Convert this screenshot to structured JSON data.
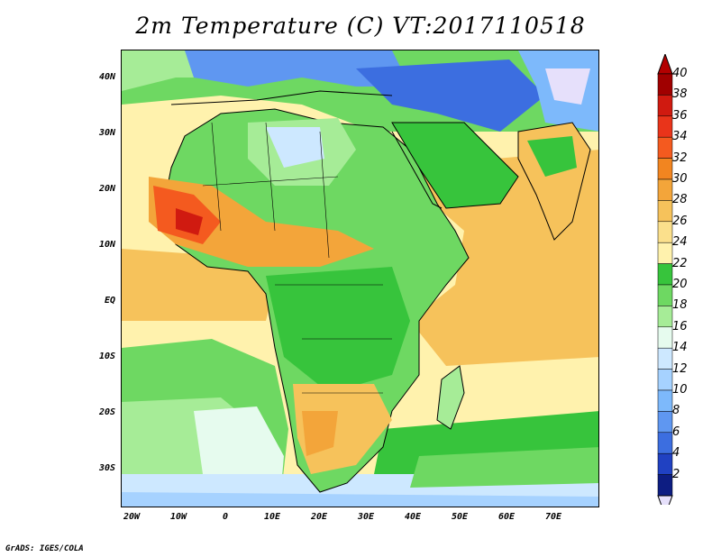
{
  "title": "2m Temperature (C) VT:2017110518",
  "credit": "GrADS: IGES/COLA",
  "map": {
    "lat_labels": [
      "40N",
      "30N",
      "20N",
      "10N",
      "EQ",
      "10S",
      "20S",
      "30S"
    ],
    "lon_labels": [
      "20W",
      "10W",
      "0",
      "10E",
      "20E",
      "30E",
      "40E",
      "50E",
      "60E",
      "70E"
    ],
    "lon_range": [
      -22,
      80
    ],
    "lat_range": [
      -37,
      45
    ]
  },
  "colorbar": {
    "labels": [
      "40",
      "38",
      "36",
      "34",
      "32",
      "30",
      "28",
      "26",
      "24",
      "22",
      "20",
      "18",
      "16",
      "14",
      "12",
      "10",
      "8",
      "6",
      "4",
      "2"
    ],
    "colors": [
      "#a00000",
      "#d01a10",
      "#e9341a",
      "#f45a1f",
      "#f28520",
      "#f3a53a",
      "#f6c25b",
      "#fbe08c",
      "#fff2ad",
      "#37c43c",
      "#6ed862",
      "#a6ec97",
      "#e6fbee",
      "#cde8ff",
      "#a6d2ff",
      "#7db9fb",
      "#5f97f1",
      "#3c6ee0",
      "#2041c2",
      "#0d1d82"
    ],
    "over_color": "#b30000",
    "under_color": "#e6e0fb"
  }
}
